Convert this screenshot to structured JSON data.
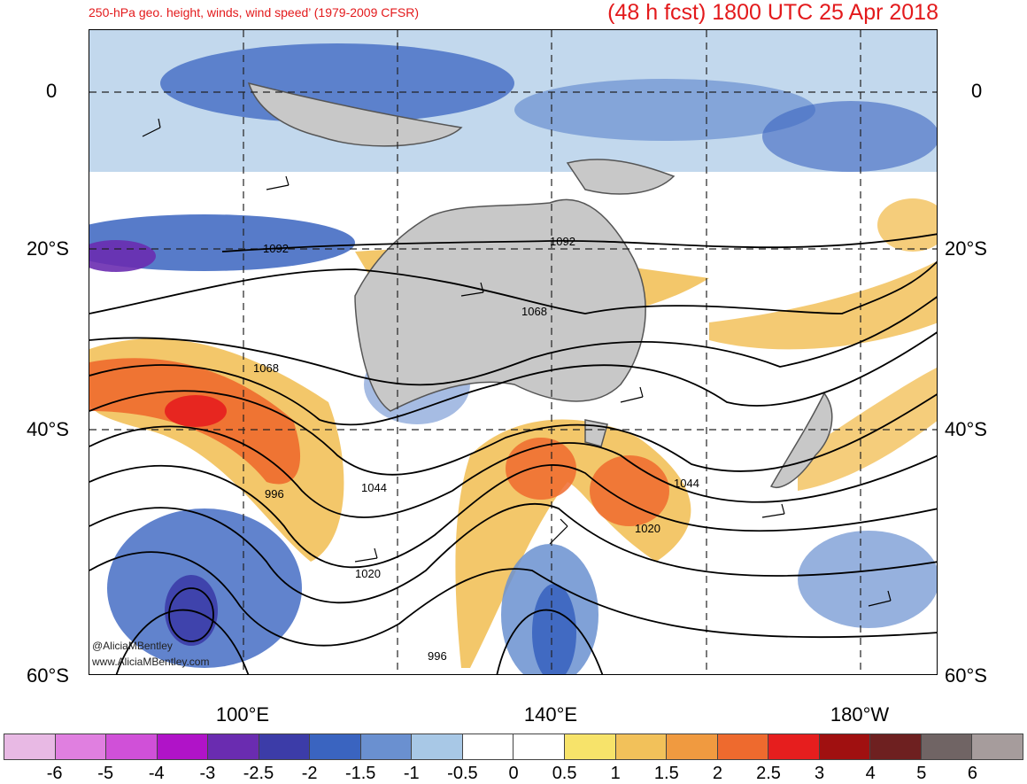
{
  "header": {
    "title_left": "250-hPa geo. height, winds, wind speed’ (1979-2009 CFSR)",
    "title_right": "(48 h fcst) 1800 UTC 25 Apr 2018"
  },
  "axes": {
    "lat_labels": [
      "0",
      "20°S",
      "40°S",
      "60°S"
    ],
    "lon_labels": [
      "100°E",
      "140°E",
      "180°W"
    ]
  },
  "contours": {
    "labels": [
      "1092",
      "1092",
      "1068",
      "1068",
      "1044",
      "1044",
      "1020",
      "1020",
      "996",
      "996"
    ]
  },
  "credits": {
    "handle": "@AliciaMBentley",
    "site": "www.AliciaMBentley.com"
  },
  "colorbar": {
    "colors": [
      "#e8b9e4",
      "#e07fe0",
      "#d050d8",
      "#b013c8",
      "#6a2cb0",
      "#3c3ca8",
      "#3a64c0",
      "#6a90d0",
      "#a8c8e6",
      "#ffffff",
      "#ffffff",
      "#f7e36a",
      "#f2c15a",
      "#f09a40",
      "#ee6a2e",
      "#e61e1e",
      "#a01010",
      "#6e2020",
      "#706464",
      "#a69c9c"
    ],
    "ticks": [
      "-6",
      "-5",
      "-4",
      "-3",
      "-2.5",
      "-2",
      "-1.5",
      "-1",
      "-0.5",
      "0",
      "0.5",
      "1",
      "1.5",
      "2",
      "2.5",
      "3",
      "4",
      "5",
      "6"
    ]
  }
}
